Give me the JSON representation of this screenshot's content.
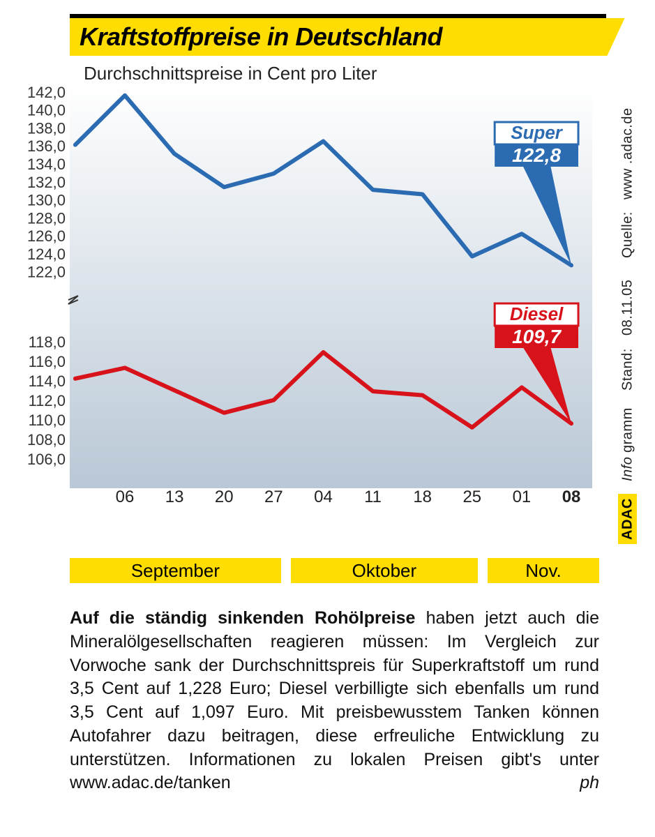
{
  "title": "Kraftstoffpreise in Deutschland",
  "subtitle": "Durchschnittspreise in Cent pro Liter",
  "chart": {
    "type": "line",
    "background_gradient": [
      "#ffffff",
      "#b9c8d6"
    ],
    "grid_color": "#dddddd",
    "x": {
      "ticks": [
        "06",
        "13",
        "20",
        "27",
        "04",
        "11",
        "18",
        "25",
        "01",
        "08"
      ],
      "bold_last": true,
      "fontsize": 24
    },
    "y_super": {
      "ticks": [
        122.0,
        124.0,
        126.0,
        128.0,
        130.0,
        132.0,
        134.0,
        136.0,
        138.0,
        140.0,
        142.0
      ],
      "format": "de-comma-1"
    },
    "y_diesel": {
      "ticks": [
        106.0,
        108.0,
        110.0,
        112.0,
        114.0,
        116.0,
        118.0
      ],
      "format": "de-comma-1"
    },
    "band_top": {
      "min": 120.5,
      "max": 143.0
    },
    "band_bottom": {
      "min": 104.5,
      "max": 119.5
    },
    "series": {
      "super": {
        "label": "Super",
        "final_value": "122,8",
        "color": "#2b6bb2",
        "label_box_border": "#2b6bb2",
        "label_box_fill": "#2b6bb2",
        "values": [
          136.2,
          141.7,
          135.2,
          131.5,
          133.0,
          136.6,
          131.2,
          130.7,
          123.8,
          126.3,
          122.8
        ]
      },
      "diesel": {
        "label": "Diesel",
        "final_value": "109,7",
        "color": "#d8121a",
        "label_box_border": "#d8121a",
        "label_box_fill": "#d8121a",
        "values": [
          114.3,
          115.4,
          113.1,
          110.8,
          112.1,
          117.0,
          113.0,
          112.6,
          109.3,
          113.4,
          109.7
        ]
      }
    },
    "line_width": 6,
    "label_fontsize": 22
  },
  "months": [
    "September",
    "Oktober",
    "Nov."
  ],
  "body": {
    "lead": "Auf die ständig sinkenden Rohölpreise",
    "rest": " haben jetzt auch die Mineralölgesellschaften reagieren müssen: Im Vergleich zur Vorwoche sank der Durchschnittspreis für Superkraftstoff um rund 3,5 Cent auf 1,228 Euro; Diesel verbilligte sich ebenfalls um rund 3,5 Cent auf 1,097 Euro. Mit preisbewusstem Tanken können Autofahrer dazu beitragen, diese erfreuliche Entwicklung zu unterstützen. Informationen zu lokalen Preisen gibt's unter www.adac.de/tanken",
    "signature": "ph"
  },
  "credit": {
    "brand": "ADAC",
    "info_italic": "Info",
    "info_rest": "gramm",
    "stand_label": "Stand:",
    "stand_value": "08.11.05",
    "source_label": "Quelle:",
    "source_value": "www .adac.de"
  },
  "colors": {
    "yellow": "#ffdd00",
    "black": "#000000"
  }
}
